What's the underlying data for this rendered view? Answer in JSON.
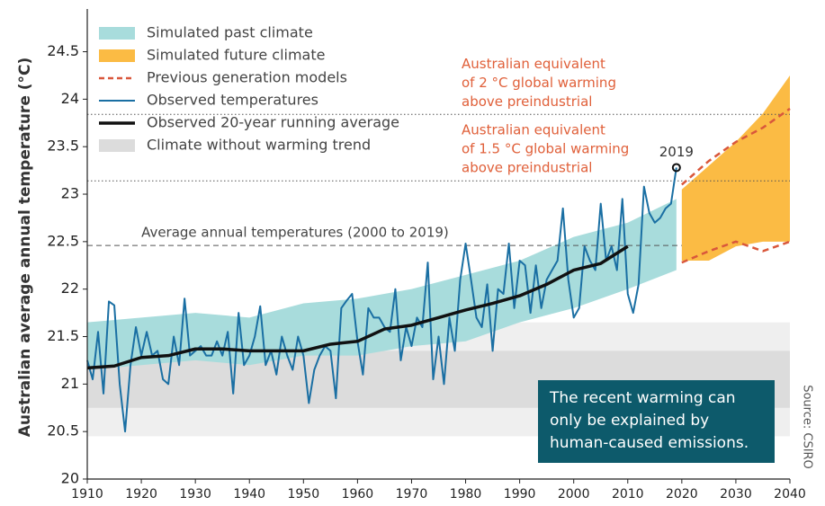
{
  "chart_data": {
    "type": "line",
    "y_label": "Australian average annual temperature (°C)",
    "source": "Source: CSIRO",
    "xlim": [
      1910,
      2040
    ],
    "ylim": [
      20,
      24.95
    ],
    "xticks": [
      1910,
      1920,
      1930,
      1940,
      1950,
      1960,
      1970,
      1980,
      1990,
      2000,
      2010,
      2020,
      2030,
      2040
    ],
    "yticks": [
      20,
      20.5,
      21,
      21.5,
      22,
      22.5,
      23,
      23.5,
      24,
      24.5
    ],
    "series": [
      {
        "name": "Simulated past climate",
        "kind": "band",
        "color": "#a8dcdc",
        "x": [
          1910,
          1920,
          1930,
          1940,
          1950,
          1960,
          1970,
          1980,
          1990,
          2000,
          2010,
          2019
        ],
        "lower": [
          21.15,
          21.2,
          21.25,
          21.2,
          21.3,
          21.3,
          21.4,
          21.45,
          21.65,
          21.8,
          22.0,
          22.2
        ],
        "upper": [
          21.65,
          21.7,
          21.75,
          21.7,
          21.85,
          21.9,
          22.0,
          22.15,
          22.3,
          22.55,
          22.7,
          22.95
        ]
      },
      {
        "name": "Simulated future climate",
        "kind": "band",
        "color": "#fbbb44",
        "x": [
          2020,
          2025,
          2030,
          2035,
          2040
        ],
        "lower": [
          22.3,
          22.3,
          22.45,
          22.5,
          22.5
        ],
        "upper": [
          23.05,
          23.3,
          23.55,
          23.85,
          24.25
        ]
      },
      {
        "name": "Previous generation models",
        "kind": "dashed-pair",
        "color": "#d9573b",
        "x": [
          2020,
          2025,
          2030,
          2035,
          2040
        ],
        "lower": [
          22.28,
          22.4,
          22.5,
          22.4,
          22.5
        ],
        "upper": [
          23.1,
          23.35,
          23.55,
          23.7,
          23.9
        ]
      },
      {
        "name": "Observed temperatures",
        "kind": "line",
        "color": "#1a6fa3",
        "width": 2,
        "x": [
          1910,
          1911,
          1912,
          1913,
          1914,
          1915,
          1916,
          1917,
          1918,
          1919,
          1920,
          1921,
          1922,
          1923,
          1924,
          1925,
          1926,
          1927,
          1928,
          1929,
          1930,
          1931,
          1932,
          1933,
          1934,
          1935,
          1936,
          1937,
          1938,
          1939,
          1940,
          1941,
          1942,
          1943,
          1944,
          1945,
          1946,
          1947,
          1948,
          1949,
          1950,
          1951,
          1952,
          1953,
          1954,
          1955,
          1956,
          1957,
          1958,
          1959,
          1960,
          1961,
          1962,
          1963,
          1964,
          1965,
          1966,
          1967,
          1968,
          1969,
          1970,
          1971,
          1972,
          1973,
          1974,
          1975,
          1976,
          1977,
          1978,
          1979,
          1980,
          1981,
          1982,
          1983,
          1984,
          1985,
          1986,
          1987,
          1988,
          1989,
          1990,
          1991,
          1992,
          1993,
          1994,
          1995,
          1996,
          1997,
          1998,
          1999,
          2000,
          2001,
          2002,
          2003,
          2004,
          2005,
          2006,
          2007,
          2008,
          2009,
          2010,
          2011,
          2012,
          2013,
          2014,
          2015,
          2016,
          2017,
          2018,
          2019
        ],
        "values": [
          21.25,
          21.05,
          21.55,
          20.9,
          21.87,
          21.83,
          21.0,
          20.5,
          21.2,
          21.6,
          21.3,
          21.55,
          21.3,
          21.35,
          21.05,
          21.0,
          21.5,
          21.2,
          21.9,
          21.3,
          21.35,
          21.4,
          21.3,
          21.3,
          21.45,
          21.3,
          21.55,
          20.9,
          21.75,
          21.2,
          21.3,
          21.5,
          21.82,
          21.2,
          21.35,
          21.1,
          21.5,
          21.3,
          21.15,
          21.5,
          21.3,
          20.8,
          21.15,
          21.3,
          21.4,
          21.35,
          20.85,
          21.8,
          21.88,
          21.95,
          21.45,
          21.1,
          21.8,
          21.7,
          21.7,
          21.6,
          21.55,
          22.0,
          21.25,
          21.6,
          21.4,
          21.7,
          21.6,
          22.28,
          21.05,
          21.5,
          21.0,
          21.7,
          21.35,
          22.1,
          22.48,
          22.1,
          21.7,
          21.6,
          22.05,
          21.35,
          22.0,
          21.95,
          22.48,
          21.8,
          22.3,
          22.25,
          21.75,
          22.25,
          21.8,
          22.1,
          22.2,
          22.3,
          22.85,
          22.1,
          21.7,
          21.8,
          22.45,
          22.3,
          22.2,
          22.9,
          22.3,
          22.45,
          22.2,
          22.95,
          21.95,
          21.75,
          22.05,
          23.08,
          22.8,
          22.7,
          22.75,
          22.85,
          22.9,
          23.28
        ]
      },
      {
        "name": "Observed 20-year running average",
        "kind": "line",
        "color": "#111111",
        "width": 3.5,
        "x": [
          1910,
          1915,
          1920,
          1925,
          1930,
          1935,
          1940,
          1945,
          1950,
          1955,
          1960,
          1965,
          1970,
          1975,
          1980,
          1985,
          1990,
          1995,
          2000,
          2005,
          2010
        ],
        "values": [
          21.17,
          21.19,
          21.28,
          21.3,
          21.37,
          21.37,
          21.35,
          21.35,
          21.35,
          21.42,
          21.45,
          21.58,
          21.62,
          21.7,
          21.78,
          21.85,
          21.93,
          22.05,
          22.2,
          22.27,
          22.45
        ]
      },
      {
        "name": "Climate without warming trend",
        "kind": "flat-bands",
        "color": "#dcdcdc",
        "bands": [
          {
            "lower": 20.45,
            "upper": 21.65,
            "color": "#efefef"
          },
          {
            "lower": 20.75,
            "upper": 21.35,
            "color": "#dcdcdc"
          }
        ]
      }
    ],
    "reference_lines": [
      {
        "value": 22.46,
        "style": "dashed",
        "xlim": [
          1910,
          2020
        ],
        "label": [
          "Average annual temperatures (2000 to 2019)"
        ],
        "label_color": "#444444"
      },
      {
        "value": 23.14,
        "style": "dotted",
        "xlim": [
          1910,
          2040
        ],
        "label": [
          "Australian equivalent",
          "of 1.5 °C global warming",
          "above preindustrial"
        ],
        "label_color": "#e0603a"
      },
      {
        "value": 23.84,
        "style": "dotted",
        "xlim": [
          1910,
          2040
        ],
        "label": [
          "Australian equivalent",
          "of 2 °C global warming",
          "above preindustrial"
        ],
        "label_color": "#e0603a"
      }
    ],
    "highlight": {
      "label": "2019",
      "x": 2019,
      "value": 23.28
    },
    "callout": {
      "lines": [
        "The recent warming can",
        "only be explained by",
        "human-caused emissions."
      ],
      "color": "#0d5a6b"
    }
  }
}
